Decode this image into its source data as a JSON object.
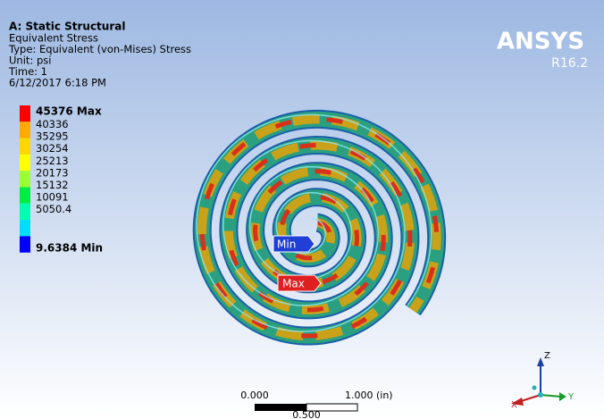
{
  "header": {
    "title": "A: Static Structural",
    "lines": [
      "Equivalent Stress",
      "Type: Equivalent (von-Mises) Stress",
      "Unit: psi",
      "Time: 1",
      "6/12/2017 6:18 PM"
    ]
  },
  "legend": {
    "max": "45376 Max",
    "levels": [
      "40336",
      "35295",
      "30254",
      "25213",
      "20173",
      "15132",
      "10091",
      "5050.4"
    ],
    "min": "9.6384 Min",
    "colors": [
      "#ff0000",
      "#ffaa00",
      "#ffd700",
      "#ffff00",
      "#99ff33",
      "#00ee44",
      "#00ffb0",
      "#00ddff",
      "#0000ff"
    ]
  },
  "brand": {
    "name": "ANSYS",
    "version": "R16.2"
  },
  "probes": {
    "min": "Min",
    "max": "Max"
  },
  "scale_bar": {
    "left": "0.000",
    "right": "1.000 (in)",
    "middle": "0.500"
  },
  "triad": {
    "x": "X",
    "y": "Y",
    "z": "Z"
  }
}
